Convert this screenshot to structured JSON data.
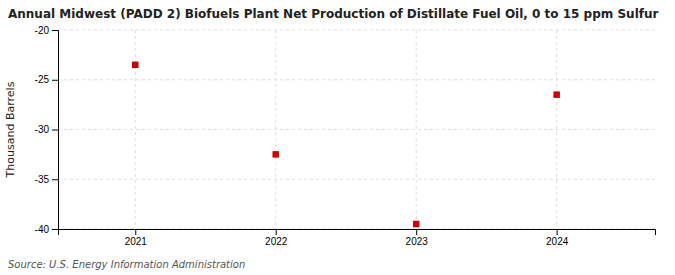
{
  "chart_data": {
    "type": "scatter",
    "title": "Annual Midwest (PADD 2) Biofuels Plant Net Production of Distillate Fuel Oil, 0 to 15 ppm Sulfur",
    "ylabel": "Thousand Barrels",
    "source": "Source: U.S. Energy Information Administration",
    "x": [
      2021,
      2022,
      2023,
      2024
    ],
    "values": [
      -23.5,
      -32.5,
      -39.5,
      -26.5
    ],
    "xlim": [
      2020.45,
      2024.7
    ],
    "xticks": [
      2021,
      2022,
      2023,
      2024
    ],
    "ylim": [
      -40,
      -20
    ],
    "yticks": [
      -40,
      -35,
      -30,
      -25,
      -20
    ],
    "color": "#cc0000",
    "marker": "square",
    "grid": true
  }
}
